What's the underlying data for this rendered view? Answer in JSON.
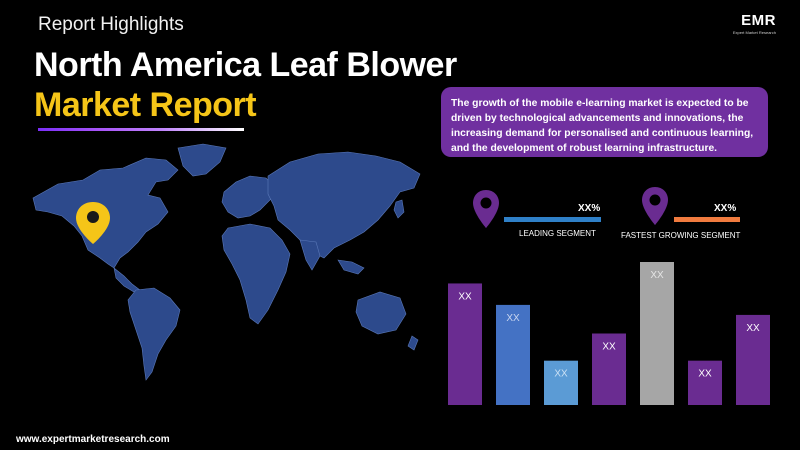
{
  "header": {
    "section_label": "Report Highlights",
    "title_line1": "North America Leaf Blower",
    "title_line2": "Market Report"
  },
  "logo": {
    "text": "EMR",
    "subtext": "Expert Market Research"
  },
  "summary": {
    "text": "The growth of the mobile e-learning market is expected to be driven by technological advancements and innovations, the increasing demand for personalised and continuous learning, and the development of robust learning infrastructure."
  },
  "map": {
    "icon": "location-pin-icon",
    "land_color": "#2d4a8c",
    "pin_color": "#f5c518"
  },
  "segments": {
    "leading": {
      "value": "XX%",
      "label": "LEADING SEGMENT",
      "bar_color": "#2f80c8",
      "pin_color": "#6a2c91"
    },
    "fastest": {
      "value": "XX%",
      "label": "FASTEST GROWING SEGMENT",
      "bar_color": "#f07b3f",
      "pin_color": "#6a2c91"
    }
  },
  "chart_data": {
    "type": "bar",
    "categories": [
      "",
      "",
      "",
      "",
      "",
      "",
      ""
    ],
    "data_labels": [
      "XX",
      "XX",
      "XX",
      "XX",
      "XX",
      "XX",
      "XX"
    ],
    "values": [
      85,
      70,
      31,
      50,
      100,
      31,
      63
    ],
    "colors": [
      "#6a2c91",
      "#4472c4",
      "#5b9bd5",
      "#6a2c91",
      "#a6a6a6",
      "#6a2c91",
      "#6a2c91"
    ],
    "label_colors": [
      "#ffffff",
      "#c9d6f0",
      "#c9e0f5",
      "#ffffff",
      "#e5e5e5",
      "#ffffff",
      "#ffffff"
    ],
    "title": "",
    "xlabel": "",
    "ylabel": "",
    "ylim": [
      0,
      100
    ],
    "grid": false
  },
  "footer": {
    "website": "www.expertmarketresearch.com"
  }
}
